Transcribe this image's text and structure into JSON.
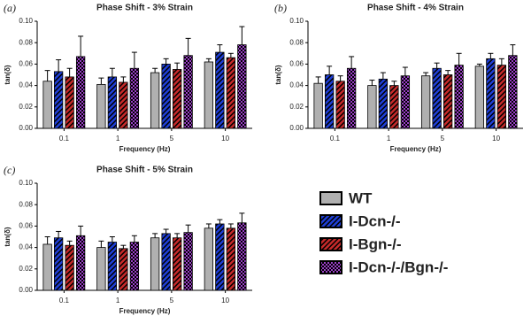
{
  "chart_data": [
    {
      "type": "bar",
      "label": "(a)",
      "title": "Phase Shift - 3% Strain",
      "x_label": "Frequency (Hz)",
      "y_label": "tan(δ)",
      "categories": [
        "0.1",
        "1",
        "5",
        "10"
      ],
      "ylim": [
        0,
        0.1
      ],
      "yticks": [
        {
          "value": 0,
          "label": "0.00"
        },
        0.02,
        0.04,
        0.06,
        0.08,
        {
          "value": 0.1,
          "label": "0.10"
        }
      ],
      "series": [
        {
          "name": "WT",
          "color": "#b0b0b0",
          "pattern": "solid",
          "values": [
            0.044,
            0.041,
            0.052,
            0.062
          ],
          "errors": [
            0.01,
            0.006,
            0.004,
            0.003
          ]
        },
        {
          "name": "I-Dcn-/-",
          "color": "#1f3fd8",
          "pattern": "stripe",
          "values": [
            0.053,
            0.048,
            0.06,
            0.071
          ],
          "errors": [
            0.011,
            0.008,
            0.005,
            0.007
          ]
        },
        {
          "name": "I-Bgn-/-",
          "color": "#c62a2a",
          "pattern": "stripe",
          "values": [
            0.048,
            0.043,
            0.055,
            0.066
          ],
          "errors": [
            0.008,
            0.005,
            0.006,
            0.004
          ]
        },
        {
          "name": "I-Dcn-/-/Bgn-/-",
          "color": "#9b3fc8",
          "pattern": "check",
          "values": [
            0.067,
            0.056,
            0.068,
            0.078
          ],
          "errors": [
            0.019,
            0.015,
            0.016,
            0.017
          ]
        }
      ]
    },
    {
      "type": "bar",
      "label": "(b)",
      "title": "Phase Shift - 4% Strain",
      "x_label": "Frequency (Hz)",
      "y_label": "tan(δ)",
      "categories": [
        "0.1",
        "1",
        "5",
        "10"
      ],
      "ylim": [
        0,
        0.1
      ],
      "yticks": [
        {
          "value": 0,
          "label": "0.00"
        },
        0.02,
        0.04,
        0.06,
        0.08,
        {
          "value": 0.1,
          "label": "0.10"
        }
      ],
      "series": [
        {
          "values": [
            0.042,
            0.04,
            0.049,
            0.058
          ],
          "errors": [
            0.006,
            0.005,
            0.003,
            0.002
          ]
        },
        {
          "values": [
            0.05,
            0.046,
            0.056,
            0.065
          ],
          "errors": [
            0.008,
            0.006,
            0.005,
            0.005
          ]
        },
        {
          "values": [
            0.044,
            0.04,
            0.05,
            0.059
          ],
          "errors": [
            0.005,
            0.004,
            0.004,
            0.006
          ]
        },
        {
          "values": [
            0.056,
            0.049,
            0.059,
            0.068
          ],
          "errors": [
            0.011,
            0.008,
            0.011,
            0.01
          ]
        }
      ]
    },
    {
      "type": "bar",
      "label": "(c)",
      "title": "Phase Shift - 5% Strain",
      "x_label": "Frequency (Hz)",
      "y_label": "tan(δ)",
      "categories": [
        "0.1",
        "1",
        "5",
        "10"
      ],
      "ylim": [
        0,
        0.1
      ],
      "yticks": [
        {
          "value": 0,
          "label": "0.00"
        },
        0.02,
        0.04,
        0.06,
        0.08,
        {
          "value": 0.1,
          "label": "0.10"
        }
      ],
      "series": [
        {
          "values": [
            0.043,
            0.04,
            0.049,
            0.058
          ],
          "errors": [
            0.007,
            0.006,
            0.004,
            0.004
          ]
        },
        {
          "values": [
            0.049,
            0.045,
            0.053,
            0.062
          ],
          "errors": [
            0.006,
            0.005,
            0.004,
            0.004
          ]
        },
        {
          "values": [
            0.042,
            0.039,
            0.049,
            0.058
          ],
          "errors": [
            0.004,
            0.003,
            0.004,
            0.004
          ]
        },
        {
          "values": [
            0.051,
            0.045,
            0.054,
            0.063
          ],
          "errors": [
            0.009,
            0.006,
            0.007,
            0.009
          ]
        }
      ]
    }
  ]
}
